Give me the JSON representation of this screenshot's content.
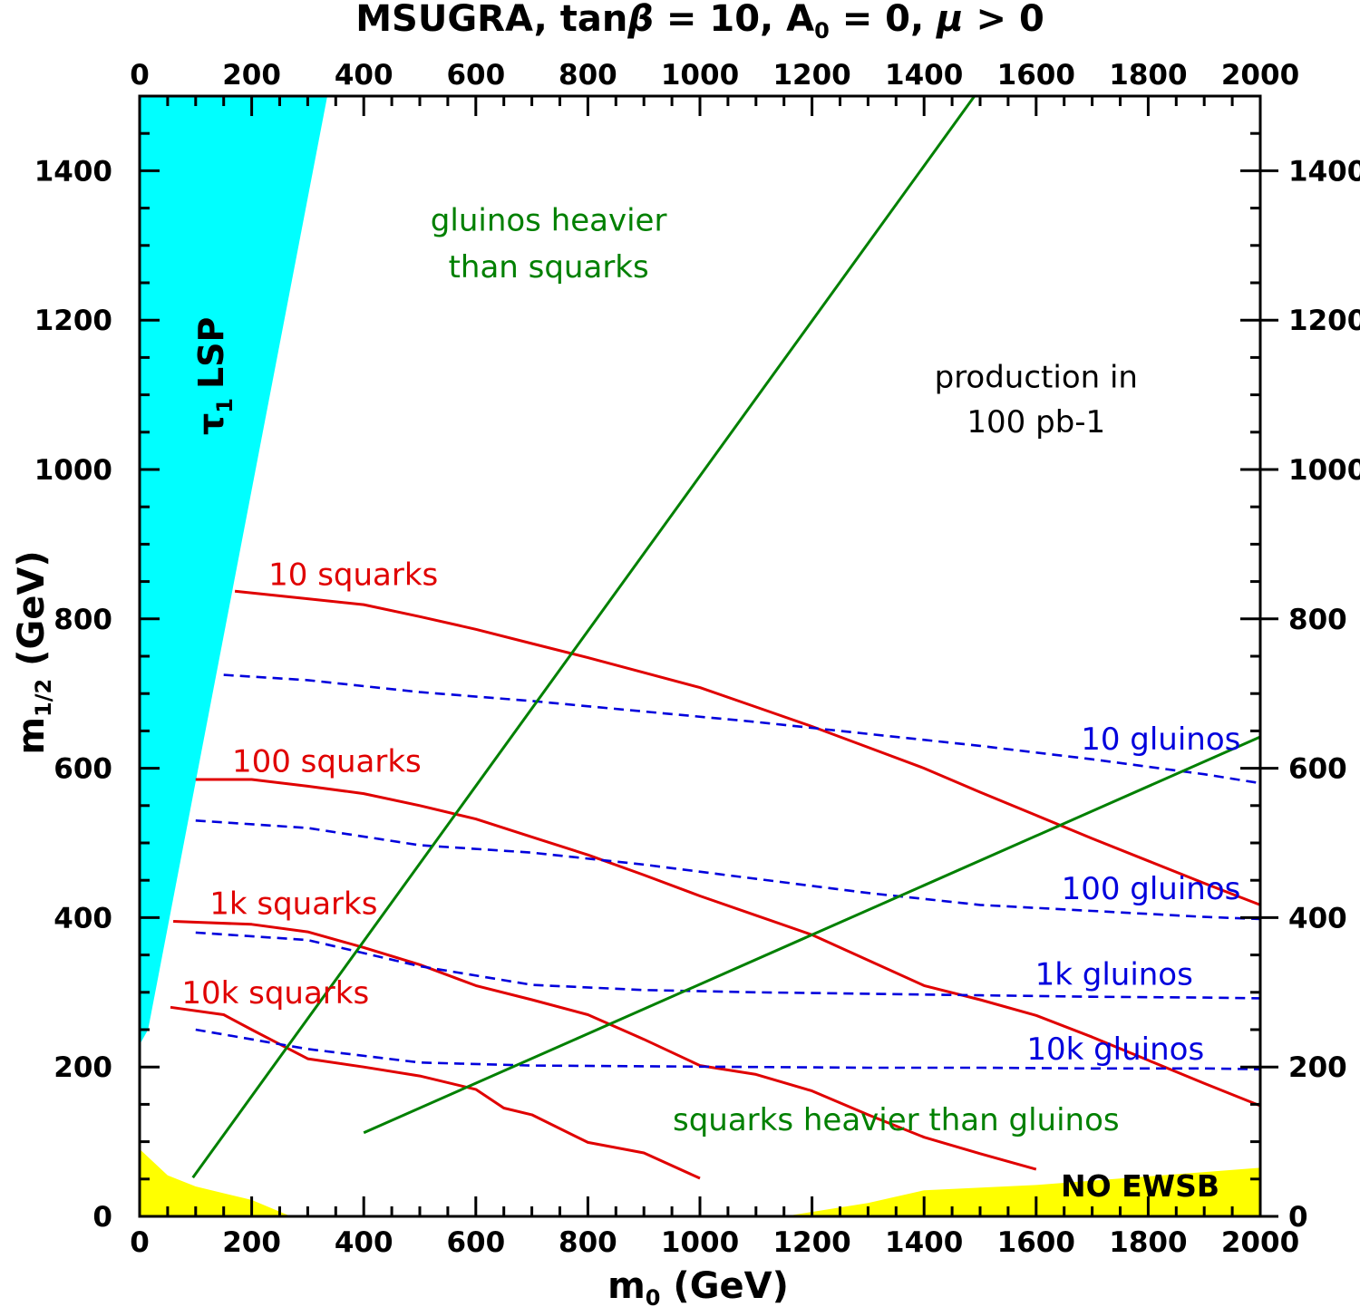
{
  "chart_data": {
    "type": "line",
    "title": "MSUGRA, tanβ = 10, A₀ = 0, μ > 0",
    "title_parts": {
      "prefix": "MSUGRA, tan",
      "beta": "β",
      "mid": " = 10, A",
      "sub": "0",
      "mid2": " = 0, ",
      "mu": "μ",
      "suffix": " > 0"
    },
    "xlabel": {
      "main": "m",
      "sub": "0",
      "rest": " (GeV)"
    },
    "ylabel": {
      "main": "m",
      "sub": "1/2",
      "rest": " (GeV)"
    },
    "xlim": [
      0,
      2000
    ],
    "ylim": [
      0,
      1500
    ],
    "x_ticks": [
      "0",
      "200",
      "400",
      "600",
      "800",
      "1000",
      "1200",
      "1400",
      "1600",
      "1800",
      "2000"
    ],
    "y_ticks": [
      "0",
      "200",
      "400",
      "600",
      "800",
      "1000",
      "1200",
      "1400"
    ],
    "grid": false,
    "colors": {
      "squarks": "#e00000",
      "gluinos": "#0000dd",
      "boundary": "#008000",
      "lsp_region": "#00ffff",
      "ewsb_region": "#ffff00"
    },
    "regions": [
      {
        "name": "tau-lsp",
        "label": "LSP",
        "label_symbol": "τ",
        "label_sub": "1",
        "color": "#00ffff",
        "points": [
          [
            0,
            230
          ],
          [
            0,
            1500
          ],
          [
            335,
            1500
          ],
          [
            15,
            250
          ]
        ]
      },
      {
        "name": "no-ewsb",
        "label": "NO EWSB",
        "color": "#ffff00",
        "points": [
          [
            0,
            90
          ],
          [
            50,
            55
          ],
          [
            100,
            40
          ],
          [
            200,
            22
          ],
          [
            270,
            0
          ],
          [
            0,
            0
          ]
        ]
      },
      {
        "name": "no-ewsb-right",
        "label": "",
        "color": "#ffff00",
        "points": [
          [
            1150,
            0
          ],
          [
            1300,
            18
          ],
          [
            1400,
            35
          ],
          [
            1600,
            42
          ],
          [
            2000,
            65
          ],
          [
            2000,
            0
          ]
        ]
      }
    ],
    "series": [
      {
        "name": "10 squarks",
        "color": "#e00000",
        "dash": false,
        "x": [
          170,
          300,
          400,
          500,
          600,
          700,
          800,
          900,
          1000,
          1100,
          1200,
          1300,
          1400,
          1500,
          1600,
          1700,
          1800,
          1900,
          2000
        ],
        "y": [
          837,
          827,
          819,
          803,
          786,
          767,
          748,
          728,
          708,
          682,
          656,
          628,
          600,
          568,
          537,
          506,
          476,
          446,
          417
        ]
      },
      {
        "name": "100 squarks",
        "color": "#e00000",
        "dash": false,
        "x": [
          100,
          200,
          300,
          400,
          500,
          600,
          700,
          800,
          900,
          1000,
          1100,
          1200,
          1300,
          1400,
          1500,
          1600,
          1700,
          1800,
          1900,
          2000
        ],
        "y": [
          585,
          585,
          576,
          566,
          550,
          532,
          508,
          484,
          457,
          429,
          403,
          377,
          343,
          309,
          290,
          269,
          240,
          209,
          178,
          148
        ]
      },
      {
        "name": "1k squarks",
        "color": "#e00000",
        "dash": false,
        "x": [
          60,
          200,
          300,
          400,
          500,
          600,
          700,
          800,
          900,
          1000,
          1100,
          1200,
          1300,
          1400,
          1500,
          1600
        ],
        "y": [
          395,
          391,
          381,
          360,
          337,
          309,
          290,
          270,
          237,
          202,
          190,
          168,
          136,
          106,
          84,
          63
        ]
      },
      {
        "name": "10k squarks",
        "color": "#e00000",
        "dash": false,
        "x": [
          55,
          150,
          200,
          300,
          400,
          500,
          600,
          650,
          700,
          800,
          900,
          1000
        ],
        "y": [
          280,
          270,
          250,
          211,
          200,
          188,
          170,
          145,
          136,
          99,
          85,
          51
        ]
      },
      {
        "name": "10 gluinos",
        "color": "#0000dd",
        "dash": true,
        "x": [
          150,
          300,
          500,
          700,
          900,
          1100,
          1300,
          1500,
          1700,
          1900,
          2000
        ],
        "y": [
          725,
          718,
          702,
          690,
          676,
          662,
          646,
          630,
          612,
          592,
          580
        ]
      },
      {
        "name": "100 gluinos",
        "color": "#0000dd",
        "dash": true,
        "x": [
          100,
          300,
          500,
          700,
          900,
          1100,
          1300,
          1500,
          1700,
          1900,
          2000
        ],
        "y": [
          530,
          520,
          497,
          487,
          471,
          452,
          433,
          417,
          409,
          401,
          398
        ]
      },
      {
        "name": "1k gluinos",
        "color": "#0000dd",
        "dash": true,
        "x": [
          100,
          300,
          500,
          700,
          900,
          1100,
          1300,
          1500,
          1700,
          1900,
          2000
        ],
        "y": [
          380,
          370,
          335,
          310,
          303,
          300,
          298,
          296,
          294,
          293,
          292
        ]
      },
      {
        "name": "10k gluinos",
        "color": "#0000dd",
        "dash": true,
        "x": [
          100,
          300,
          500,
          700,
          900,
          1100,
          1300,
          1500,
          1700,
          1900,
          2000
        ],
        "y": [
          250,
          224,
          206,
          202,
          201,
          200,
          199,
          199,
          198,
          198,
          197
        ]
      },
      {
        "name": "gluinos heavier than squarks",
        "color": "#008000",
        "dash": false,
        "x": [
          95,
          1490
        ],
        "y": [
          52,
          1500
        ]
      },
      {
        "name": "squarks heavier than gluinos",
        "color": "#008000",
        "dash": false,
        "x": [
          400,
          2000
        ],
        "y": [
          112,
          642
        ]
      }
    ],
    "annotations": [
      {
        "text": "10 squarks",
        "color": "#e00000",
        "x": 230,
        "y": 845,
        "anchor": "start"
      },
      {
        "text": "100 squarks",
        "color": "#e00000",
        "x": 165,
        "y": 595,
        "anchor": "start"
      },
      {
        "text": "1k squarks",
        "color": "#e00000",
        "x": 125,
        "y": 405,
        "anchor": "start"
      },
      {
        "text": "10k squarks",
        "color": "#e00000",
        "x": 75,
        "y": 285,
        "anchor": "start"
      },
      {
        "text": "10 gluinos",
        "color": "#0000dd",
        "x": 1965,
        "y": 625,
        "anchor": "end"
      },
      {
        "text": "100 gluinos",
        "color": "#0000dd",
        "x": 1965,
        "y": 425,
        "anchor": "end"
      },
      {
        "text": "1k gluinos",
        "color": "#0000dd",
        "x": 1880,
        "y": 310,
        "anchor": "end"
      },
      {
        "text": "10k gluinos",
        "color": "#0000dd",
        "x": 1900,
        "y": 210,
        "anchor": "end"
      },
      {
        "text": "gluinos heavier",
        "color": "#008000",
        "x": 730,
        "y": 1320,
        "anchor": "middle"
      },
      {
        "text": "than squarks",
        "color": "#008000",
        "x": 730,
        "y": 1257,
        "anchor": "middle"
      },
      {
        "text": "squarks heavier than gluinos",
        "color": "#008000",
        "x": 1350,
        "y": 115,
        "anchor": "middle"
      },
      {
        "text": "production in",
        "color": "#000000",
        "x": 1600,
        "y": 1110,
        "anchor": "middle"
      },
      {
        "text": "100 pb-1",
        "color": "#000000",
        "x": 1600,
        "y": 1050,
        "anchor": "middle"
      }
    ]
  }
}
